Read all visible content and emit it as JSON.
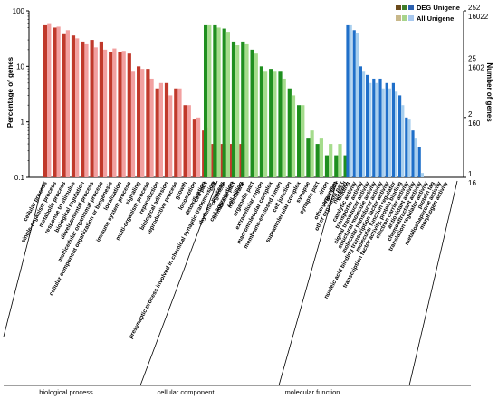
{
  "chart_data": {
    "type": "bar",
    "ylabel_left": "Percentage of genes",
    "ylabel_right": "Number of genes",
    "y_scale": "log",
    "ylim": [
      0.1,
      100
    ],
    "left_ticks": [
      "100",
      "10",
      "1",
      "0.1"
    ],
    "right_ticks_deg": [
      "252",
      "25",
      "2",
      "1"
    ],
    "right_ticks_all": [
      "16022",
      "1602",
      "160",
      "16"
    ],
    "legend": {
      "position": "top-right",
      "entries": [
        "DEG Unigene",
        "All Unigene"
      ]
    },
    "groups": [
      {
        "name": "biological process",
        "color_deg": "#c0392b",
        "color_all": "#f2a0a0",
        "categories": [
          "cellular process",
          "single-organism process",
          "metabolic process",
          "response to stimulus",
          "biological regulation",
          "developmental process",
          "multicellular organismal process",
          "cellular component organization or biogenesis",
          "localization",
          "immune system process",
          "signaling",
          "multi-organism process",
          "reproduction",
          "biological adhesion",
          "reproductive process",
          "growth",
          "locomotion",
          "detoxification",
          "presynaptic process involved in chemical synaptic transmission",
          "rhythmic process",
          "cell aggregation",
          "cell killing"
        ],
        "deg": [
          55,
          50,
          38,
          36,
          28,
          30,
          28,
          18,
          18,
          17,
          10,
          9,
          4,
          5,
          4,
          2,
          1.1,
          0.7,
          0.4,
          0.4,
          0.4,
          0.4
        ],
        "all": [
          60,
          52,
          45,
          32,
          25,
          22,
          20,
          21,
          19,
          8,
          9,
          6,
          5,
          3,
          4,
          2,
          1.2,
          0.8,
          0.4,
          0.4,
          0.4,
          0.4
        ]
      },
      {
        "name": "cellular component",
        "color_deg": "#1f8f1f",
        "color_all": "#a5dc8c",
        "categories": [
          "cell part",
          "cell",
          "organelle",
          "membrane part",
          "membrane",
          "organelle part",
          "extracellular region",
          "macromolecular complex",
          "membrane-enclosed lumen",
          "cell junction",
          "supramolecular complex",
          "synapse",
          "synapse part",
          "virion",
          "virion part",
          "nucleoid"
        ],
        "deg": [
          55,
          55,
          48,
          28,
          28,
          20,
          10,
          9,
          8,
          4,
          2,
          0.5,
          0.4,
          0.25,
          0.25,
          0.25
        ],
        "all": [
          55,
          50,
          42,
          24,
          25,
          17,
          8,
          8,
          6,
          3,
          2,
          0.7,
          0.5,
          0.4,
          0.4,
          0.3
        ]
      },
      {
        "name": "molecular function",
        "color_deg": "#1f6fc9",
        "color_all": "#a8cfee",
        "categories": [
          "other organism",
          "other organism part",
          "binding",
          "catalytic activity",
          "transporter activity",
          "signal transducer activity",
          "structural molecule activity",
          "molecular transducer activity",
          "nucleic acid binding transcription factor activity",
          "molecular function regulator",
          "transcription factor activity, protein binding",
          "electron carrier activity",
          "antioxidant activity",
          "chemoattractant activity",
          "translation regulator activity",
          "protein tag",
          "metallochaperone activity",
          "morphogen activity"
        ],
        "deg": [
          0,
          0,
          55,
          45,
          10,
          7,
          6,
          6,
          5,
          5,
          3,
          1.2,
          0.7,
          0.35,
          0,
          0,
          0,
          0
        ],
        "all": [
          0,
          0,
          55,
          40,
          8,
          5,
          5,
          4,
          4,
          3.5,
          2,
          1.1,
          0.5,
          0.12,
          0,
          0,
          0,
          0
        ]
      }
    ]
  }
}
